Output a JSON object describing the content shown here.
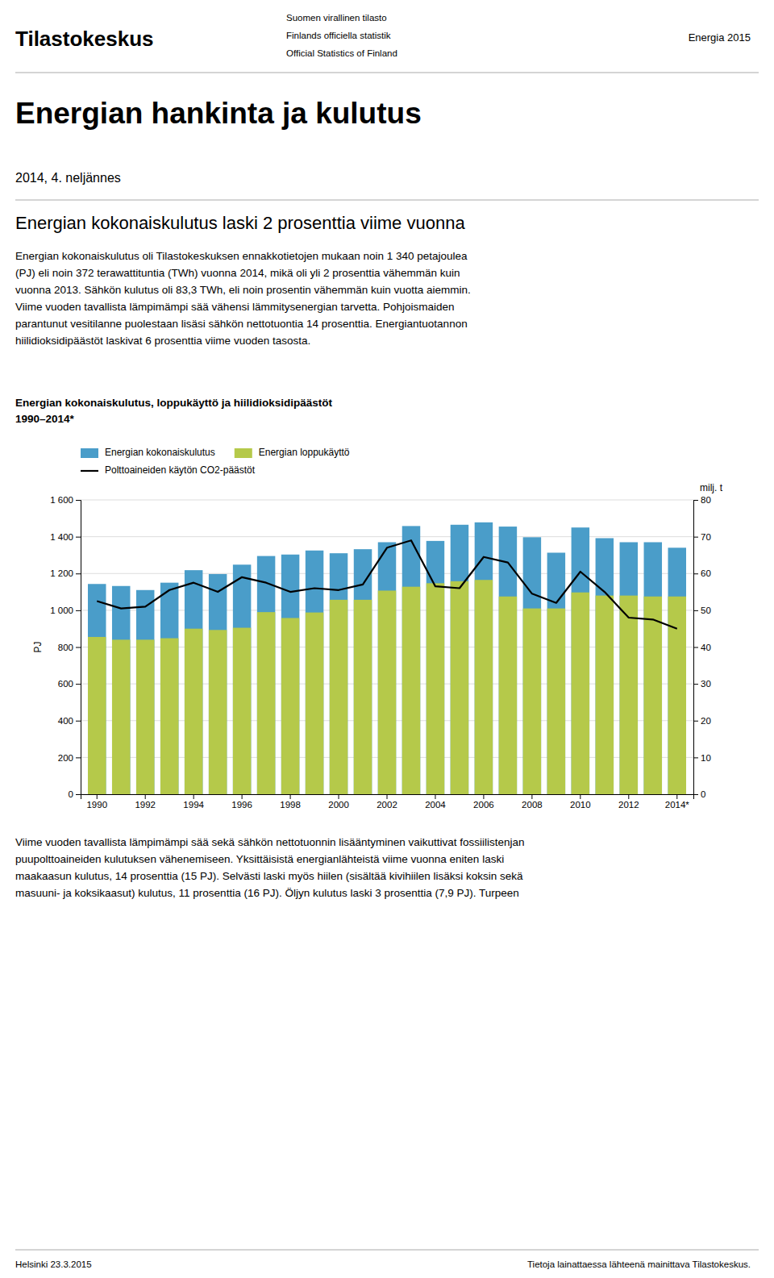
{
  "logo": "Tilastokeskus",
  "header_lines": [
    "Suomen virallinen tilasto",
    "Finlands officiella statistik",
    "Official Statistics of Finland"
  ],
  "header_right": "Energia 2015",
  "main_title": "Energian hankinta ja kulutus",
  "subtitle": "2014, 4. neljännes",
  "section_heading": "Energian kokonaiskulutus laski 2 prosenttia viime vuonna",
  "body_text": [
    "Energian kokonaiskulutus oli Tilastokeskuksen ennakkotietojen mukaan noin 1 340 petajoulea",
    "(PJ) eli noin 372 terawattituntia (TWh) vuonna 2014, mikä oli yli 2 prosenttia vähemmän kuin",
    "vuonna 2013. Sähkön kulutus oli 83,3 TWh, eli noin prosentin vähemmän kuin vuotta aiemmin.",
    "Viime vuoden tavallista lämpimämpi sää vähensi lämmitysenergian tarvetta. Pohjoismaiden",
    "parantunut vesitilanne puolestaan lisäsi sähkön nettotuontia 14 prosenttia. Energiantuotannon",
    "hiilidioksidipäästöt laskivat 6 prosenttia viime vuoden tasosta."
  ],
  "body_text2": [
    "Viime vuoden tavallista lämpimämpi sää sekä sähkön nettotuonnin lisääntyminen vaikuttivat fossiilistenjan",
    "puupolttoaineiden kulutuksen vähenemiseen. Yksittäisistä energianlähteistä viime vuonna eniten laski",
    "maakaasun kulutus, 14 prosenttia (15 PJ). Selvästi laski myös hiilen (sisältää kivihiilen lisäksi koksin sekä",
    "masuuni- ja koksikaasut) kulutus, 11 prosenttia (16 PJ). Öljyn kulutus laski 3 prosenttia (7,9 PJ). Turpeen"
  ],
  "footer_left": "Helsinki 23.3.2015",
  "footer_right": "Tietoja lainattaessa lähteenä mainittava Tilastokeskus.",
  "chart_data": {
    "type": "bar",
    "title": "Energian kokonaiskulutus, loppukäyttö ja hiilidioksidipäästöt",
    "subtitle": "1990–2014*",
    "ylabel": "PJ",
    "y2label": "milj. t",
    "categories": [
      "1990",
      null,
      "1992",
      null,
      "1994",
      null,
      "1996",
      null,
      "1998",
      null,
      "2000",
      null,
      "2002",
      null,
      "2004",
      null,
      "2006",
      null,
      "2008",
      null,
      "2010",
      null,
      "2012",
      null,
      "2014*"
    ],
    "series": [
      {
        "name": "Energian kokonaiskulutus",
        "type": "bar",
        "color": "#4a9dc9",
        "values": [
          1143,
          1132,
          1110,
          1150,
          1218,
          1197,
          1248,
          1295,
          1303,
          1325,
          1310,
          1332,
          1370,
          1458,
          1377,
          1465,
          1478,
          1455,
          1397,
          1313,
          1450,
          1392,
          1370,
          1370,
          1340
        ]
      },
      {
        "name": "Energian loppukäyttö",
        "type": "bar",
        "color": "#b5c94a",
        "values": [
          855,
          840,
          840,
          848,
          900,
          893,
          905,
          990,
          958,
          988,
          1057,
          1057,
          1107,
          1128,
          1147,
          1158,
          1165,
          1075,
          1010,
          1010,
          1097,
          1080,
          1080,
          1075,
          1075
        ]
      },
      {
        "name": "Polttoaineiden käytön CO2-päästöt",
        "type": "line",
        "axis": "y2",
        "color": "#000000",
        "values": [
          52.5,
          50.5,
          51.0,
          55.5,
          57.5,
          55.0,
          59.0,
          57.5,
          55.0,
          56.0,
          55.5,
          57.0,
          67.0,
          69.0,
          56.5,
          56.0,
          64.5,
          63.0,
          54.5,
          52.0,
          60.5,
          55.0,
          48.0,
          47.5,
          45.0
        ]
      }
    ],
    "ylim": [
      0,
      1600
    ],
    "yticks": [
      0,
      200,
      400,
      600,
      800,
      {
        "value": 1000,
        "label": "1 000"
      },
      {
        "value": 1200,
        "label": "1 200"
      },
      {
        "value": 1400,
        "label": "1 400"
      },
      {
        "value": 1600,
        "label": "1 600"
      }
    ],
    "y2lim": [
      0,
      80
    ],
    "y2ticks": [
      0,
      10,
      20,
      30,
      40,
      50,
      60,
      70,
      80
    ],
    "grid": true,
    "legend": "top"
  }
}
